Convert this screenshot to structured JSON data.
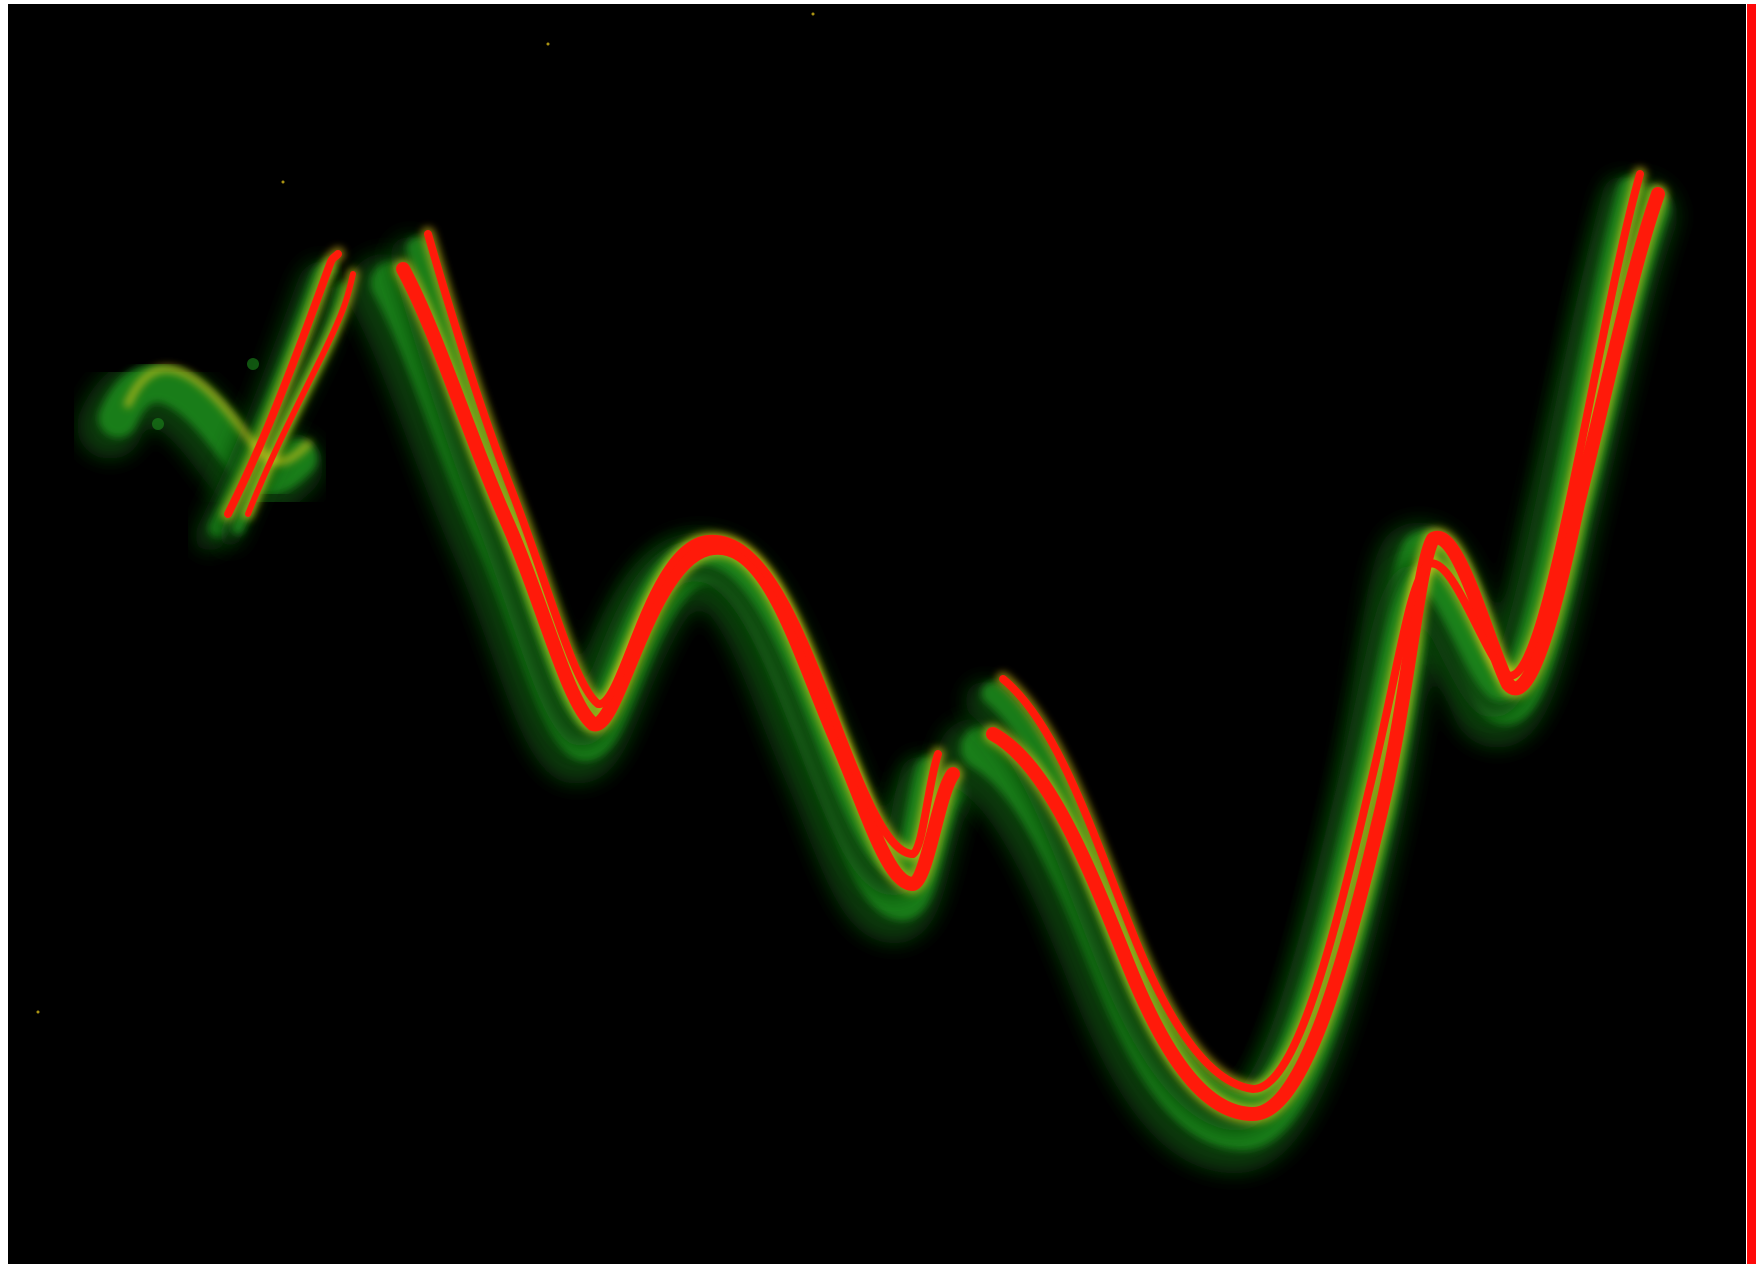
{
  "image": {
    "background": "#000000",
    "frame_color": "#ffffff",
    "border_color": "#ff0a0a",
    "palette": {
      "core": "#ff1a0a",
      "mid": "#f2d21a",
      "halo": "#1a8a1a",
      "halo_dark": "#0b3f0b"
    },
    "description_tags": [
      "fractal-attractor",
      "glowing-curve",
      "red-green-heatmap"
    ]
  }
}
